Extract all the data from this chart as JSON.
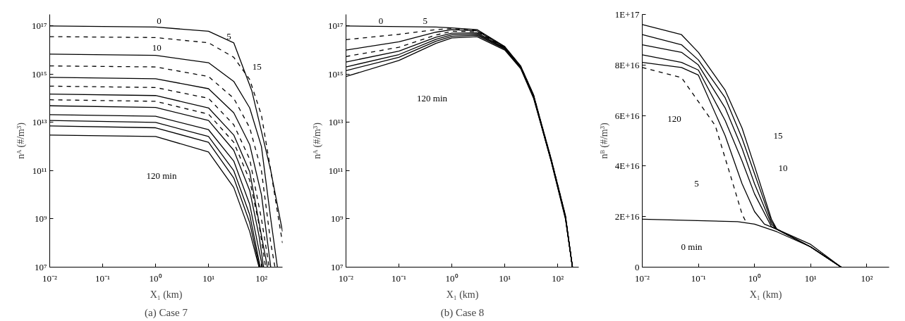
{
  "chart_data": [
    {
      "type": "line",
      "xlabel": "X₁ (km)",
      "ylabel": "nᴬ (#/m³)",
      "log": "xy",
      "xlim": [
        0.01,
        250
      ],
      "ylim": [
        10000000.0,
        3e+17
      ],
      "xticks": [
        {
          "value": 0.01,
          "label": "10⁻²"
        },
        {
          "value": 0.1,
          "label": "10⁻¹"
        },
        {
          "value": 1,
          "label": "10⁰"
        },
        {
          "value": 10,
          "label": "10¹"
        },
        {
          "value": 100,
          "label": "10²"
        }
      ],
      "yticks": [
        {
          "value": 10000000.0,
          "label": "10⁷"
        },
        {
          "value": 1000000000.0,
          "label": "10⁹"
        },
        {
          "value": 100000000000.0,
          "label": "10¹¹"
        },
        {
          "value": 10000000000000.0,
          "label": "10¹³"
        },
        {
          "value": 1000000000000000.0,
          "label": "10¹⁵"
        },
        {
          "value": 1e+17,
          "label": "10¹⁷"
        }
      ],
      "series": [
        {
          "color": "#000000",
          "line_style": "solid",
          "x": [
            0.01,
            1,
            10,
            30,
            66,
            150,
            250
          ],
          "values": [
            1e+17,
            9e+16,
            6e+16,
            2e+16,
            200000000000000.0,
            100000000000.0,
            300000000.0
          ]
        },
        {
          "color": "#000000",
          "line_style": "dashed",
          "x": [
            0.01,
            1,
            10,
            30,
            60,
            100,
            150,
            250
          ],
          "values": [
            3.6e+16,
            3.3e+16,
            2e+16,
            5000000000000000.0,
            600000000000000.0,
            20000000000000.0,
            100000000000.0,
            100000000.0
          ]
        },
        {
          "color": "#000000",
          "line_style": "solid",
          "x": [
            0.01,
            1,
            10,
            30,
            60,
            100,
            150,
            200
          ],
          "values": [
            6800000000000000.0,
            6000000000000000.0,
            3000000000000000.0,
            500000000000000.0,
            40000000000000.0,
            1000000000000.0,
            1000000000.0,
            10000000.0
          ]
        },
        {
          "color": "#000000",
          "line_style": "dashed",
          "x": [
            0.01,
            1,
            10,
            30,
            60,
            100,
            150,
            180
          ],
          "values": [
            2200000000000000.0,
            2000000000000000.0,
            800000000000000.0,
            100000000000000.0,
            6000000000000.0,
            100000000000.0,
            100000000.0,
            10000000.0
          ]
        },
        {
          "color": "#000000",
          "line_style": "solid",
          "x": [
            0.01,
            1,
            10,
            30,
            60,
            100,
            150
          ],
          "values": [
            740000000000000.0,
            650000000000000.0,
            250000000000000.0,
            25000000000000.0,
            1200000000000.0,
            10000000000.0,
            10000000.0
          ]
        },
        {
          "color": "#000000",
          "line_style": "dashed",
          "x": [
            0.01,
            1,
            10,
            30,
            60,
            100,
            140
          ],
          "values": [
            320000000000000.0,
            280000000000000.0,
            100000000000000.0,
            8000000000000.0,
            300000000000.0,
            1000000000.0,
            10000000.0
          ]
        },
        {
          "color": "#000000",
          "line_style": "solid",
          "x": [
            0.01,
            1,
            10,
            30,
            60,
            100,
            130
          ],
          "values": [
            150000000000000.0,
            130000000000000.0,
            40000000000000.0,
            3000000000000.0,
            90000000000.0,
            200000000.0,
            10000000.0
          ]
        },
        {
          "color": "#000000",
          "line_style": "dashed",
          "x": [
            0.01,
            1,
            10,
            30,
            60,
            90,
            120
          ],
          "values": [
            87000000000000.0,
            75000000000000.0,
            22000000000000.0,
            1500000000000.0,
            40000000000.0,
            600000000.0,
            10000000.0
          ]
        },
        {
          "color": "#000000",
          "line_style": "solid",
          "x": [
            0.01,
            1,
            10,
            30,
            60,
            90,
            110
          ],
          "values": [
            49000000000000.0,
            42000000000000.0,
            12000000000000.0,
            700000000000.0,
            15000000000.0,
            200000000.0,
            10000000.0
          ]
        },
        {
          "color": "#000000",
          "line_style": "solid",
          "x": [
            0.01,
            1,
            10,
            30,
            60,
            90,
            105
          ],
          "values": [
            21000000000000.0,
            18000000000000.0,
            5000000000000.0,
            250000000000.0,
            4000000000.0,
            50000000.0,
            10000000.0
          ]
        },
        {
          "color": "#000000",
          "line_style": "solid",
          "x": [
            0.01,
            1,
            10,
            30,
            60,
            95
          ],
          "values": [
            12000000000000.0,
            10000000000000.0,
            2600000000000.0,
            100000000000.0,
            1500000000.0,
            10000000.0
          ]
        },
        {
          "color": "#000000",
          "line_style": "solid",
          "x": [
            0.01,
            1,
            10,
            30,
            60,
            92
          ],
          "values": [
            7200000000000.0,
            6000000000000.0,
            1500000000000.0,
            50000000000.0,
            700000000.0,
            10000000.0
          ]
        },
        {
          "color": "#000000",
          "line_style": "solid",
          "x": [
            0.01,
            1,
            10,
            30,
            60,
            90
          ],
          "values": [
            3000000000000.0,
            2600000000000.0,
            600000000000.0,
            20000000000.0,
            300000000.0,
            10000000.0
          ]
        }
      ],
      "annotations": [
        "0",
        "5",
        "10",
        "15",
        "120 min"
      ],
      "title": "(a) Case 7"
    },
    {
      "type": "line",
      "xlabel": "X₁ (km)",
      "ylabel": "nᴬ (#/m³)",
      "log": "xy",
      "xlim": [
        0.01,
        250
      ],
      "ylim": [
        10000000.0,
        3e+17
      ],
      "xticks": [
        {
          "value": 0.01,
          "label": "10⁻²"
        },
        {
          "value": 0.1,
          "label": "10⁻¹"
        },
        {
          "value": 1,
          "label": "10⁰"
        },
        {
          "value": 10,
          "label": "10¹"
        },
        {
          "value": 100,
          "label": "10²"
        }
      ],
      "yticks": [
        {
          "value": 10000000.0,
          "label": "10⁷"
        },
        {
          "value": 1000000000.0,
          "label": "10⁹"
        },
        {
          "value": 100000000000.0,
          "label": "10¹¹"
        },
        {
          "value": 10000000000000.0,
          "label": "10¹³"
        },
        {
          "value": 1000000000000000.0,
          "label": "10¹⁵"
        },
        {
          "value": 1e+17,
          "label": "10¹⁷"
        }
      ],
      "series": [
        {
          "color": "#000000",
          "line_style": "solid",
          "x": [
            0.01,
            0.5,
            1,
            3,
            10,
            20,
            35,
            48,
            75,
            140,
            190
          ],
          "values": [
            1e+17,
            9e+16,
            8.3e+16,
            7e+16,
            1.4e+16,
            2200000000000000.0,
            140000000000000.0,
            11000000000000.0,
            320000000000.0,
            1400000000.0,
            10000000.0
          ]
        },
        {
          "color": "#000000",
          "line_style": "dashed",
          "x": [
            0.01,
            0.1,
            0.5,
            1,
            3,
            10,
            20,
            35,
            48,
            75,
            140,
            190
          ],
          "values": [
            2.7e+16,
            4.5e+16,
            7e+16,
            7.8e+16,
            6.6e+16,
            1.35e+16,
            2100000000000000.0,
            135000000000000.0,
            10500000000000.0,
            310000000000.0,
            1350000000.0,
            10000000.0
          ]
        },
        {
          "color": "#000000",
          "line_style": "solid",
          "x": [
            0.01,
            0.1,
            0.5,
            1,
            3,
            10,
            20,
            35,
            48,
            75,
            140,
            190
          ],
          "values": [
            1e+16,
            2.2e+16,
            5.5e+16,
            7e+16,
            6.2e+16,
            1.3e+16,
            2000000000000000.0,
            130000000000000.0,
            10000000000000.0,
            300000000000.0,
            1300000000.0,
            10000000.0
          ]
        },
        {
          "color": "#000000",
          "line_style": "dashed",
          "x": [
            0.01,
            0.1,
            0.5,
            1,
            3,
            10,
            20,
            35,
            48,
            75,
            140,
            190
          ],
          "values": [
            5400000000000000.0,
            1.3e+16,
            4.2e+16,
            6e+16,
            5.8e+16,
            1.25e+16,
            1950000000000000.0,
            125000000000000.0,
            9800000000000.0,
            290000000000.0,
            1250000000.0,
            10000000.0
          ]
        },
        {
          "color": "#000000",
          "line_style": "solid",
          "x": [
            0.01,
            0.1,
            0.5,
            1,
            3,
            10,
            20,
            35,
            48,
            75,
            140,
            190
          ],
          "values": [
            3200000000000000.0,
            9000000000000000.0,
            3.4e+16,
            5e+16,
            5.2e+16,
            1.2e+16,
            1900000000000000.0,
            120000000000000.0,
            9500000000000.0,
            280000000000.0,
            1200000000.0,
            10000000.0
          ]
        },
        {
          "color": "#000000",
          "line_style": "solid",
          "x": [
            0.01,
            0.1,
            0.5,
            1,
            3,
            10,
            20,
            35,
            48,
            75,
            140,
            190
          ],
          "values": [
            2000000000000000.0,
            6500000000000000.0,
            2.8e+16,
            4.3e+16,
            4.6e+16,
            1.15e+16,
            1850000000000000.0,
            115000000000000.0,
            9200000000000.0,
            270000000000.0,
            1150000000.0,
            10000000.0
          ]
        },
        {
          "color": "#000000",
          "line_style": "solid",
          "x": [
            0.01,
            0.1,
            0.5,
            1,
            3,
            10,
            20,
            35,
            48,
            75,
            140,
            190
          ],
          "values": [
            1400000000000000.0,
            5000000000000000.0,
            2.3e+16,
            3.7e+16,
            4.1e+16,
            1.1e+16,
            1800000000000000.0,
            110000000000000.0,
            9000000000000.0,
            260000000000.0,
            1100000000.0,
            10000000.0
          ]
        },
        {
          "color": "#000000",
          "line_style": "solid",
          "x": [
            0.01,
            0.1,
            0.5,
            1,
            3,
            10,
            20,
            35,
            48,
            75,
            140,
            190
          ],
          "values": [
            800000000000000.0,
            3700000000000000.0,
            1.9e+16,
            3.2e+16,
            3.6e+16,
            1e+16,
            1700000000000000.0,
            100000000000000.0,
            8500000000000.0,
            250000000000.0,
            1000000000.0,
            10000000.0
          ]
        }
      ],
      "annotations": [
        "0",
        "5",
        "120 min"
      ],
      "title": "(b) Case 8"
    },
    {
      "type": "line",
      "xlabel": "X₁ (km)",
      "ylabel": "nᴮ (#/m³)",
      "log": "x",
      "xlim": [
        0.01,
        250
      ],
      "ylim": [
        0,
        1e+17
      ],
      "xticks": [
        {
          "value": 0.01,
          "label": "10⁻²"
        },
        {
          "value": 0.1,
          "label": "10⁻¹"
        },
        {
          "value": 1,
          "label": "10⁰"
        },
        {
          "value": 10,
          "label": "10¹"
        },
        {
          "value": 100,
          "label": "10²"
        }
      ],
      "yticks": [
        0,
        {
          "value": 2e+16,
          "label": "2E+16"
        },
        {
          "value": 4e+16,
          "label": "4E+16"
        },
        {
          "value": 6e+16,
          "label": "6E+16"
        },
        {
          "value": 8e+16,
          "label": "8E+16"
        },
        {
          "value": 1e+17,
          "label": "1E+17"
        }
      ],
      "series": [
        {
          "color": "#000000",
          "line_style": "solid",
          "x": [
            0.01,
            0.5,
            1,
            2.5,
            10,
            35
          ],
          "values": [
            1.9e+16,
            1.8e+16,
            1.7e+16,
            1.4e+16,
            8000000000000000.0,
            0
          ]
        },
        {
          "color": "#000000",
          "line_style": "dashed",
          "x": [
            0.01,
            0.05,
            0.2,
            0.4,
            0.6,
            0.7
          ],
          "values": [
            7.9e+16,
            7.5e+16,
            5.6e+16,
            3.4e+16,
            2.1e+16,
            1.8e+16
          ]
        },
        {
          "color": "#000000",
          "line_style": "solid",
          "x": [
            0.01,
            0.05,
            0.1,
            0.3,
            0.6,
            1,
            2,
            2.5,
            10,
            35
          ],
          "values": [
            9.6e+16,
            9.2e+16,
            8.5e+16,
            7e+16,
            5.5e+16,
            4e+16,
            1.9e+16,
            1.5e+16,
            9000000000000000.0,
            0
          ]
        },
        {
          "color": "#000000",
          "line_style": "solid",
          "x": [
            0.01,
            0.05,
            0.1,
            0.3,
            0.6,
            1,
            2,
            2.5,
            10,
            35
          ],
          "values": [
            9.2e+16,
            8.8e+16,
            8.2e+16,
            6.7e+16,
            5.1e+16,
            3.7e+16,
            1.8e+16,
            1.5e+16,
            8000000000000000.0,
            0
          ]
        },
        {
          "color": "#000000",
          "line_style": "solid",
          "x": [
            0.01,
            0.05,
            0.1,
            0.3,
            0.6,
            1,
            2,
            2.5,
            10,
            35
          ],
          "values": [
            8.8e+16,
            8.5e+16,
            8e+16,
            6.3e+16,
            4.7e+16,
            3.3e+16,
            1.7e+16,
            1.5e+16,
            8000000000000000.0,
            0
          ]
        },
        {
          "color": "#000000",
          "line_style": "solid",
          "x": [
            0.01,
            0.05,
            0.1,
            0.3,
            0.6,
            1,
            2,
            2.5,
            10,
            35
          ],
          "values": [
            8.4e+16,
            8.1e+16,
            7.8e+16,
            5.8e+16,
            4.2e+16,
            2.9e+16,
            1.6e+16,
            1.5e+16,
            8000000000000000.0,
            0
          ]
        },
        {
          "color": "#000000",
          "line_style": "solid",
          "x": [
            0.01,
            0.05,
            0.1,
            0.3,
            0.6,
            1,
            1.5,
            2.5,
            10,
            35
          ],
          "values": [
            8.1e+16,
            7.9e+16,
            7.6e+16,
            5.2e+16,
            3.3e+16,
            2.2e+16,
            1.7e+16,
            1.5e+16,
            8000000000000000.0,
            0
          ]
        }
      ],
      "annotations": [
        "120",
        "15",
        "10",
        "5",
        "0 min"
      ]
    }
  ]
}
